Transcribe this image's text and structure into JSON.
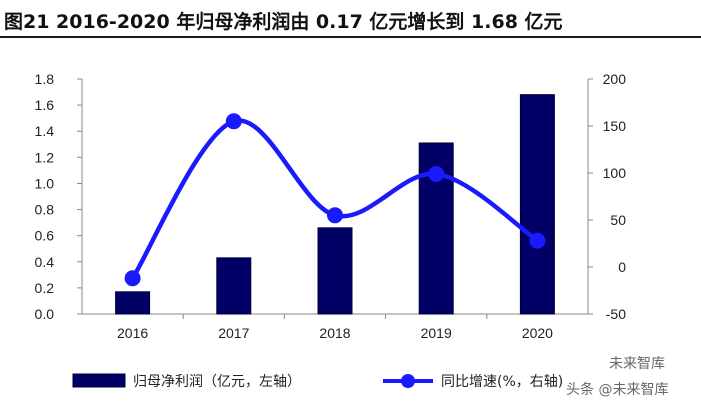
{
  "title": "图21 2016-2020 年归母净利润由 0.17 亿元增长到 1.68 亿元",
  "watermark": {
    "top": "未来智库",
    "bottom": "头条 @未来智库"
  },
  "colors": {
    "bar": "#000066",
    "line": "#1a1aff",
    "axis": "#888888"
  },
  "chart_data": {
    "type": "bar+line",
    "categories": [
      "2016",
      "2017",
      "2018",
      "2019",
      "2020"
    ],
    "series": [
      {
        "name": "归母净利润（亿元，左轴）",
        "type": "bar",
        "axis": "left",
        "values": [
          0.17,
          0.43,
          0.66,
          1.31,
          1.68
        ]
      },
      {
        "name": "同比增速(%，右轴)",
        "type": "line",
        "axis": "right",
        "values": [
          -12,
          155,
          55,
          99,
          28
        ]
      }
    ],
    "y_left": {
      "min": 0,
      "max": 1.8,
      "ticks": [
        "0.0",
        "0.2",
        "0.4",
        "0.6",
        "0.8",
        "1.0",
        "1.2",
        "1.4",
        "1.6",
        "1.8"
      ]
    },
    "y_right": {
      "min": -50,
      "max": 200,
      "ticks": [
        "-50",
        "0",
        "50",
        "100",
        "150",
        "200"
      ]
    },
    "grid": false,
    "legend": "bottom"
  }
}
